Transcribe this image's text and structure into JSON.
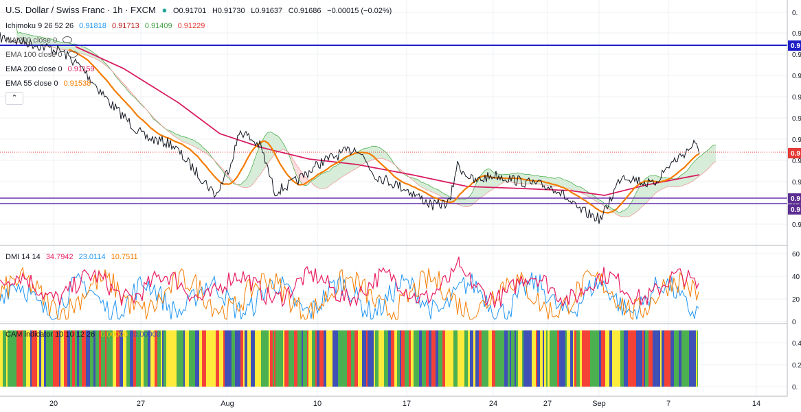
{
  "header": {
    "symbol": "U.S. Dollar / Swiss Franc · 1h · FXCM",
    "open": "O0.91701",
    "high": "H0.91730",
    "low": "L0.91637",
    "close": "C0.91686",
    "change": "−0.00015 (−0.02%)",
    "status_color": "#26a69a"
  },
  "indicators": {
    "ichimoku": {
      "label": "Ichimoku 9 26 52 26",
      "v1": "0.91818",
      "v2": "0.91713",
      "v3": "0.91409",
      "v4": "0.91229"
    },
    "ma200": {
      "label": "MA 200 close 0"
    },
    "ema100": {
      "label": "EMA 100 close 0"
    },
    "ema200": {
      "label": "EMA 200 close 0",
      "value": "0.91159"
    },
    "ema55": {
      "label": "EMA 55 close 0",
      "value": "0.91538"
    },
    "collapse": "⌃"
  },
  "dmi": {
    "label": "DMI 14 14",
    "v1": "34.7942",
    "v2": "23.0114",
    "v3": "10.7511"
  },
  "cam": {
    "label": "CAM indicator 10 10 12 26",
    "v1": "0.00000",
    "v2": "0.00000"
  },
  "chart_data": [
    {
      "type": "line",
      "title": "U.S. Dollar / Swiss Franc · 1h · FXCM",
      "x_ticks": [
        "20",
        "27",
        "Aug",
        "10",
        "17",
        "24",
        "27",
        "Sep",
        "7",
        "14"
      ],
      "price_axis_labels": [
        "0.",
        "0.9",
        "0.9",
        "0.9",
        "0.9",
        "0.9",
        "0.9",
        "0.9",
        "0.9",
        "0.9",
        "0.9"
      ],
      "price_badges": [
        {
          "text": "0.9",
          "color": "#1e1ec8"
        },
        {
          "text": "0.9",
          "color": "#e53935"
        },
        {
          "text": "0.9",
          "color": "#5b2d91"
        },
        {
          "text": "0.9",
          "color": "#5b2d91"
        }
      ],
      "colors": {
        "price": "#131722",
        "ema55": "#f57c00",
        "ema200": "#d81b60",
        "blue_line": "#1e1ec8",
        "purple_line": "#6a2fb0",
        "cloud_bull": "#4caf50",
        "cloud_bear": "#ef9a9a"
      }
    },
    {
      "type": "line",
      "title": "DMI 14 14",
      "y_ticks": [
        "60",
        "40",
        "20",
        "0"
      ],
      "ylim": [
        0,
        63
      ],
      "series": [
        {
          "name": "+DI",
          "color": "#2196f3"
        },
        {
          "name": "-DI",
          "color": "#f57c00"
        },
        {
          "name": "ADX",
          "color": "#e91e63"
        }
      ]
    },
    {
      "type": "bar",
      "title": "CAM indicator 10 10 12 26",
      "y_ticks": [
        "0.4",
        "0.2",
        "0."
      ],
      "colors": [
        "#3f51b5",
        "#f44336",
        "#ffeb3b",
        "#4caf50"
      ]
    }
  ]
}
